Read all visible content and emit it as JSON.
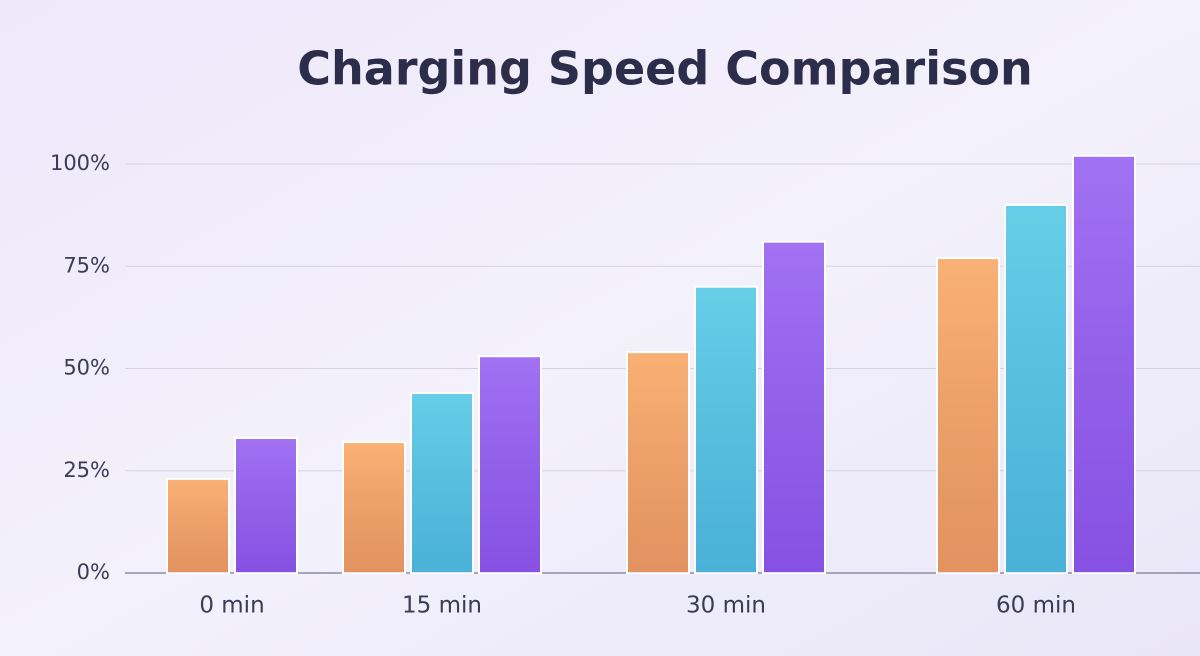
{
  "chart_data": {
    "type": "bar",
    "title": "Charging Speed Comparison",
    "categories": [
      "0 min",
      "15 min",
      "30 min",
      "60 min"
    ],
    "series": [
      {
        "color": "#f9a35c",
        "values": [
          23,
          32,
          54,
          77
        ]
      },
      {
        "color": "#4cc6e3",
        "values": [
          null,
          44,
          70,
          90
        ]
      },
      {
        "color": "#9159f0",
        "values": [
          33,
          53,
          81,
          102
        ]
      }
    ],
    "ylim": [
      0,
      105
    ],
    "yticks": [
      {
        "value": 0,
        "label": "0%"
      },
      {
        "value": 25,
        "label": "25%"
      },
      {
        "value": 50,
        "label": "50%"
      },
      {
        "value": 75,
        "label": "75%"
      },
      {
        "value": 100,
        "label": "100%"
      }
    ],
    "grid": true
  }
}
